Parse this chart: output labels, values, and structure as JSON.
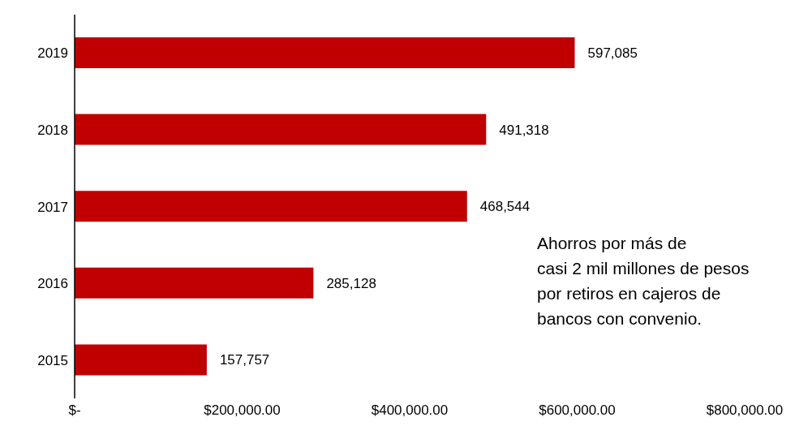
{
  "chart_data": {
    "type": "bar",
    "orientation": "horizontal",
    "categories": [
      "2019",
      "2018",
      "2017",
      "2016",
      "2015"
    ],
    "values": [
      597085,
      491318,
      468544,
      285128,
      157757
    ],
    "color": "#c00000",
    "xlim": [
      0,
      800000
    ],
    "xticks": [
      {
        "value": 0,
        "label": "$-"
      },
      {
        "value": 200000,
        "label": "$200,000.00"
      },
      {
        "value": 400000,
        "label": "$400,000.00"
      },
      {
        "value": 600000,
        "label": "$600,000.00"
      },
      {
        "value": 800000,
        "label": "$800,000.00"
      }
    ],
    "value_labels": [
      "597,085",
      "491,318",
      "468,544",
      "285,128",
      "157,757"
    ],
    "grid": false,
    "legend": false,
    "annotations": [
      "Ahorros por más de\ncasi 2 mil millones de pesos\npor retiros en cajeros de\nbancos con convenio."
    ]
  }
}
